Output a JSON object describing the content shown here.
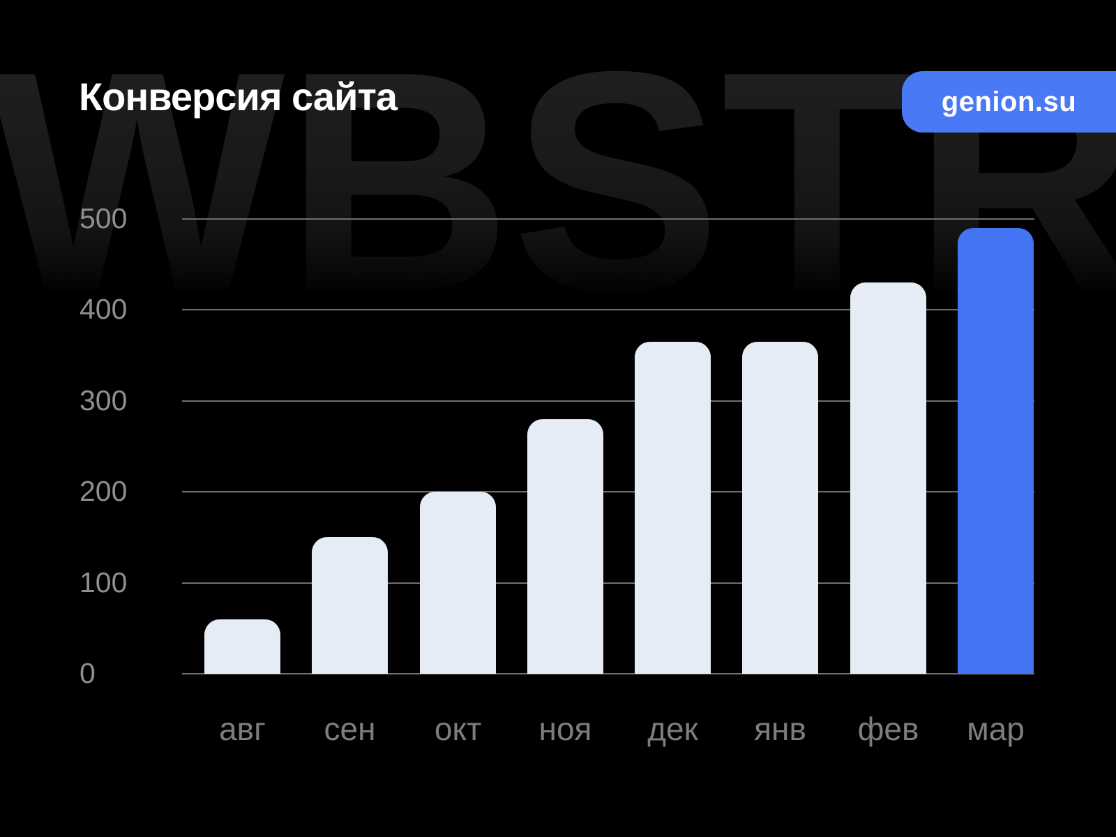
{
  "title": "Конверсия сайта",
  "watermark": "WBSTR",
  "badge": {
    "label": "genion.su"
  },
  "colors": {
    "background": "#000000",
    "title": "#ffffff",
    "badge_background": "#4a79f5",
    "badge_text": "#ffffff",
    "bar": "#e6ecf6",
    "bar_highlight": "#4374f3",
    "gridline": "#6f6f6f",
    "y_axis_label": "#8f8f8f",
    "x_axis_label": "#7d7d7d",
    "watermark_color": "#1a1a1a"
  },
  "chart_data": {
    "type": "bar",
    "title": "Конверсия сайта",
    "categories": [
      "авг",
      "сен",
      "окт",
      "ноя",
      "дек",
      "янв",
      "фев",
      "мар"
    ],
    "values": [
      60,
      150,
      200,
      280,
      365,
      365,
      430,
      490
    ],
    "highlight_index": 7,
    "xlabel": "",
    "ylabel": "",
    "ylim": [
      0,
      500
    ],
    "yticks": [
      0,
      100,
      200,
      300,
      400,
      500
    ],
    "grid": true,
    "legend": false
  }
}
